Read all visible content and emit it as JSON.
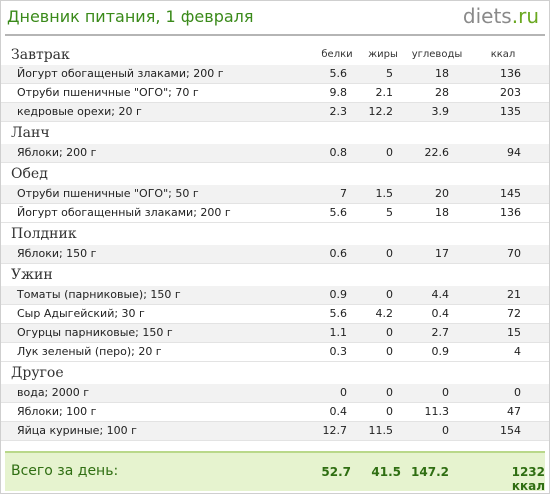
{
  "header": {
    "title": "Дневник питания, 1 февраля",
    "logo_main": "diets",
    "logo_tld": ".ru"
  },
  "columns": {
    "protein": "белки",
    "fat": "жиры",
    "carbs": "углеводы",
    "kcal": "ккал"
  },
  "meals": [
    {
      "name": "Завтрак",
      "items": [
        {
          "name": "Йогурт обогащеный злаками; 200 г",
          "protein": "5.6",
          "fat": "5",
          "carbs": "18",
          "kcal": "136"
        },
        {
          "name": "Отруби пшеничные \"ОГО\"; 70 г",
          "protein": "9.8",
          "fat": "2.1",
          "carbs": "28",
          "kcal": "203"
        },
        {
          "name": "кедровые орехи; 20 г",
          "protein": "2.3",
          "fat": "12.2",
          "carbs": "3.9",
          "kcal": "135"
        }
      ]
    },
    {
      "name": "Ланч",
      "items": [
        {
          "name": "Яблоки; 200 г",
          "protein": "0.8",
          "fat": "0",
          "carbs": "22.6",
          "kcal": "94"
        }
      ]
    },
    {
      "name": "Обед",
      "items": [
        {
          "name": "Отруби пшеничные \"ОГО\"; 50 г",
          "protein": "7",
          "fat": "1.5",
          "carbs": "20",
          "kcal": "145"
        },
        {
          "name": "Йогурт обогащенный злаками; 200 г",
          "protein": "5.6",
          "fat": "5",
          "carbs": "18",
          "kcal": "136"
        }
      ]
    },
    {
      "name": "Полдник",
      "items": [
        {
          "name": "Яблоки; 150 г",
          "protein": "0.6",
          "fat": "0",
          "carbs": "17",
          "kcal": "70"
        }
      ]
    },
    {
      "name": "Ужин",
      "items": [
        {
          "name": "Томаты (парниковые); 150 г",
          "protein": "0.9",
          "fat": "0",
          "carbs": "4.4",
          "kcal": "21"
        },
        {
          "name": "Сыр Адыгейский; 30 г",
          "protein": "5.6",
          "fat": "4.2",
          "carbs": "0.4",
          "kcal": "72"
        },
        {
          "name": "Огурцы парниковые; 150 г",
          "protein": "1.1",
          "fat": "0",
          "carbs": "2.7",
          "kcal": "15"
        },
        {
          "name": "Лук зеленый (перо); 20 г",
          "protein": "0.3",
          "fat": "0",
          "carbs": "0.9",
          "kcal": "4"
        }
      ]
    },
    {
      "name": "Другое",
      "items": [
        {
          "name": "вода; 2000 г",
          "protein": "0",
          "fat": "0",
          "carbs": "0",
          "kcal": "0"
        },
        {
          "name": "Яблоки; 100 г",
          "protein": "0.4",
          "fat": "0",
          "carbs": "11.3",
          "kcal": "47"
        },
        {
          "name": "Яйца куриные; 100 г",
          "protein": "12.7",
          "fat": "11.5",
          "carbs": "0",
          "kcal": "154"
        }
      ]
    }
  ],
  "totals": {
    "label": "Всего за день:",
    "protein": "52.7",
    "fat": "41.5",
    "carbs": "147.2",
    "kcal": "1232 ккал"
  }
}
